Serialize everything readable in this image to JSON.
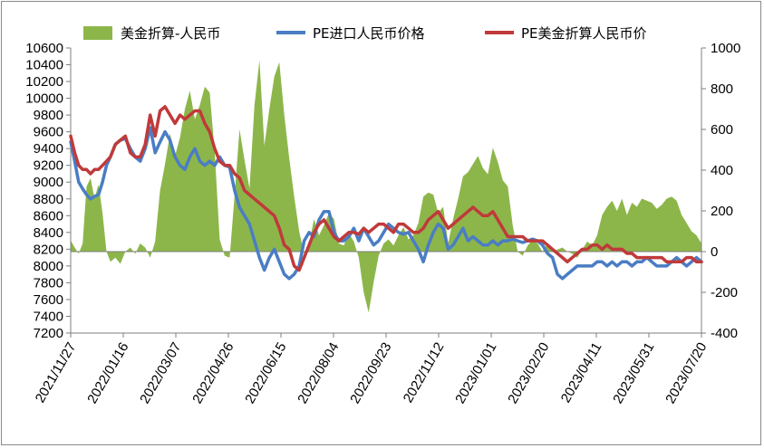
{
  "chart_data": {
    "type": "line",
    "title": "",
    "xlabel": "",
    "ylabel": "",
    "y_left": {
      "min": 7200,
      "max": 10600,
      "step": 200
    },
    "y_right": {
      "min": -400,
      "max": 1000,
      "step": 200
    },
    "x_tick_labels": [
      "2021/11/27",
      "2022/01/16",
      "2022/03/07",
      "2022/04/26",
      "2022/06/15",
      "2022/08/04",
      "2022/09/23",
      "2022/11/12",
      "2023/01/01",
      "2023/02/20",
      "2023/04/11",
      "2023/05/31",
      "2023/07/20"
    ],
    "legend_position": "top",
    "grid": false,
    "series": [
      {
        "name": "美金折算-人民币",
        "type": "area",
        "axis": "right",
        "color": "#8db64a",
        "x": [
          0,
          4,
          8,
          12,
          16,
          20,
          24,
          28,
          32,
          36,
          40,
          45,
          50,
          55,
          60,
          65,
          70,
          75,
          80,
          85,
          90,
          95,
          100,
          105,
          110,
          115,
          120,
          125,
          130,
          135,
          140,
          145,
          150,
          155,
          160,
          165,
          170,
          175,
          180,
          185,
          190,
          195,
          200,
          205,
          210,
          215,
          220,
          225,
          230,
          235,
          240,
          245,
          250,
          255,
          260,
          265,
          270,
          275,
          280,
          285,
          290,
          295,
          300,
          305,
          310,
          315,
          320,
          325,
          330,
          335,
          340,
          345,
          350,
          355,
          360,
          365,
          370,
          375,
          380,
          385,
          390,
          395,
          400,
          405,
          410,
          415,
          420,
          425,
          430,
          435,
          440,
          445,
          450,
          455,
          460,
          465,
          470,
          475,
          480,
          485,
          490,
          495,
          500,
          505,
          510,
          515,
          520,
          525,
          530,
          535,
          540,
          545,
          550,
          555,
          560,
          565,
          570,
          575,
          580,
          585,
          590,
          595,
          600,
          605,
          610,
          615,
          620,
          625,
          630,
          635
        ],
        "values": [
          55,
          20,
          -10,
          40,
          320,
          360,
          260,
          330,
          190,
          0,
          -50,
          -30,
          -60,
          0,
          20,
          -10,
          40,
          20,
          -30,
          50,
          300,
          430,
          580,
          470,
          560,
          700,
          790,
          650,
          720,
          810,
          780,
          490,
          60,
          -20,
          -30,
          280,
          600,
          450,
          310,
          720,
          940,
          520,
          700,
          860,
          930,
          670,
          460,
          270,
          100,
          -10,
          40,
          160,
          80,
          130,
          190,
          160,
          40,
          30,
          90,
          50,
          -30,
          -200,
          -300,
          -150,
          -20,
          40,
          60,
          30,
          80,
          120,
          60,
          80,
          140,
          270,
          290,
          280,
          190,
          220,
          40,
          160,
          260,
          370,
          390,
          430,
          470,
          410,
          380,
          510,
          440,
          350,
          320,
          130,
          0,
          -20,
          30,
          60,
          40,
          0,
          40,
          0,
          10,
          20,
          0,
          -10,
          -30,
          10,
          50,
          30,
          80,
          180,
          220,
          250,
          200,
          260,
          180,
          240,
          220,
          260,
          250,
          240,
          210,
          230,
          260,
          270,
          250,
          180,
          140,
          100,
          80,
          40
        ],
        "note": "relative x index; values in right-axis units (approximate)"
      },
      {
        "name": "PE进口人民币价格",
        "type": "line",
        "axis": "left",
        "color": "#4a7dc4",
        "x": [
          0,
          4,
          8,
          12,
          16,
          20,
          24,
          28,
          32,
          36,
          40,
          45,
          50,
          55,
          60,
          65,
          70,
          75,
          80,
          85,
          90,
          95,
          100,
          105,
          110,
          115,
          120,
          125,
          130,
          135,
          140,
          145,
          150,
          155,
          160,
          165,
          170,
          175,
          180,
          185,
          190,
          195,
          200,
          205,
          210,
          215,
          220,
          225,
          230,
          235,
          240,
          245,
          250,
          255,
          260,
          265,
          270,
          275,
          280,
          285,
          290,
          295,
          300,
          305,
          310,
          315,
          320,
          325,
          330,
          335,
          340,
          345,
          350,
          355,
          360,
          365,
          370,
          375,
          380,
          385,
          390,
          395,
          400,
          405,
          410,
          415,
          420,
          425,
          430,
          435,
          440,
          445,
          450,
          455,
          460,
          465,
          470,
          475,
          480,
          485,
          490,
          495,
          500,
          505,
          510,
          515,
          520,
          525,
          530,
          535,
          540,
          545,
          550,
          555,
          560,
          565,
          570,
          575,
          580,
          585,
          590,
          595,
          600,
          605,
          610,
          615,
          620,
          625,
          630,
          635
        ],
        "values": [
          9480,
          9250,
          9000,
          8920,
          8850,
          8800,
          8830,
          8850,
          9000,
          9200,
          9300,
          9450,
          9500,
          9520,
          9400,
          9300,
          9250,
          9400,
          9650,
          9350,
          9480,
          9600,
          9500,
          9300,
          9200,
          9150,
          9300,
          9400,
          9250,
          9200,
          9250,
          9200,
          9300,
          9200,
          9180,
          8900,
          8700,
          8600,
          8500,
          8300,
          8100,
          7950,
          8100,
          8200,
          8050,
          7900,
          7850,
          7900,
          8000,
          8300,
          8400,
          8350,
          8550,
          8650,
          8650,
          8400,
          8300,
          8300,
          8350,
          8450,
          8300,
          8450,
          8350,
          8250,
          8300,
          8400,
          8500,
          8450,
          8400,
          8380,
          8400,
          8300,
          8200,
          8050,
          8250,
          8400,
          8500,
          8450,
          8200,
          8250,
          8350,
          8450,
          8300,
          8350,
          8300,
          8250,
          8250,
          8300,
          8250,
          8300,
          8300,
          8320,
          8300,
          8280,
          8300,
          8320,
          8300,
          8250,
          8150,
          8100,
          7900,
          7850,
          7900,
          7950,
          8000,
          8000,
          8000,
          8000,
          8050,
          8050,
          8000,
          8050,
          8000,
          8050,
          8050,
          8000,
          8050,
          8050,
          8100,
          8050,
          8000,
          8000,
          8000,
          8050,
          8100,
          8050,
          8000,
          8050,
          8100,
          8050
        ],
        "note": "approximate readings in left-axis units"
      },
      {
        "name": "PE美金折算人民币价",
        "type": "line",
        "axis": "left",
        "color": "#c03a3a",
        "x": [
          0,
          4,
          8,
          12,
          16,
          20,
          24,
          28,
          32,
          36,
          40,
          45,
          50,
          55,
          60,
          65,
          70,
          75,
          80,
          85,
          90,
          95,
          100,
          105,
          110,
          115,
          120,
          125,
          130,
          135,
          140,
          145,
          150,
          155,
          160,
          165,
          170,
          175,
          180,
          185,
          190,
          195,
          200,
          205,
          210,
          215,
          220,
          225,
          230,
          235,
          240,
          245,
          250,
          255,
          260,
          265,
          270,
          275,
          280,
          285,
          290,
          295,
          300,
          305,
          310,
          315,
          320,
          325,
          330,
          335,
          340,
          345,
          350,
          355,
          360,
          365,
          370,
          375,
          380,
          385,
          390,
          395,
          400,
          405,
          410,
          415,
          420,
          425,
          430,
          435,
          440,
          445,
          450,
          455,
          460,
          465,
          470,
          475,
          480,
          485,
          490,
          495,
          500,
          505,
          510,
          515,
          520,
          525,
          530,
          535,
          540,
          545,
          550,
          555,
          560,
          565,
          570,
          575,
          580,
          585,
          590,
          595,
          600,
          605,
          610,
          615,
          620,
          625,
          630,
          635
        ],
        "values": [
          9550,
          9350,
          9200,
          9150,
          9150,
          9100,
          9150,
          9150,
          9200,
          9250,
          9300,
          9450,
          9500,
          9550,
          9350,
          9300,
          9300,
          9450,
          9800,
          9550,
          9850,
          9900,
          9800,
          9700,
          9800,
          9750,
          9800,
          9850,
          9850,
          9700,
          9600,
          9400,
          9250,
          9200,
          9200,
          9100,
          9050,
          8900,
          8850,
          8800,
          8750,
          8700,
          8650,
          8600,
          8450,
          8250,
          8200,
          8000,
          7950,
          8100,
          8250,
          8400,
          8500,
          8550,
          8450,
          8350,
          8300,
          8350,
          8400,
          8400,
          8380,
          8450,
          8400,
          8450,
          8500,
          8500,
          8450,
          8400,
          8500,
          8500,
          8450,
          8400,
          8400,
          8450,
          8550,
          8600,
          8650,
          8550,
          8450,
          8500,
          8550,
          8600,
          8650,
          8700,
          8650,
          8600,
          8600,
          8650,
          8550,
          8450,
          8350,
          8350,
          8350,
          8350,
          8300,
          8300,
          8300,
          8300,
          8250,
          8200,
          8150,
          8100,
          8050,
          8100,
          8150,
          8200,
          8200,
          8250,
          8250,
          8200,
          8250,
          8200,
          8200,
          8200,
          8150,
          8150,
          8100,
          8100,
          8100,
          8100,
          8100,
          8100,
          8050,
          8050,
          8050,
          8050,
          8100,
          8100,
          8050,
          8050
        ],
        "note": "approximate readings in left-axis units"
      }
    ]
  }
}
